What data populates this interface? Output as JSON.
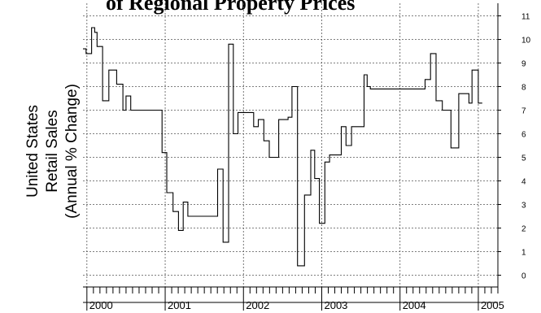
{
  "chart_data": {
    "type": "line",
    "title": "of Regional Property Prices",
    "ylabel_lines": [
      "United States",
      "Retail Sales",
      "(Annual % Change)"
    ],
    "ylim": [
      -0.5,
      11.5
    ],
    "y_ticks": [
      0,
      1,
      2,
      3,
      4,
      5,
      6,
      7,
      8,
      9,
      10,
      11
    ],
    "x_range": [
      1999.95,
      2005.25
    ],
    "x_ticks": [
      {
        "label": "2000",
        "value": 2000
      },
      {
        "label": "2001",
        "value": 2001
      },
      {
        "label": "2002",
        "value": 2002
      },
      {
        "label": "2003",
        "value": 2003
      },
      {
        "label": "2004",
        "value": 2004
      },
      {
        "label": "2005",
        "value": 2005
      }
    ],
    "grid": true,
    "line_color": "#000000",
    "series": [
      {
        "step": true,
        "points": [
          [
            1999.95,
            9.6
          ],
          [
            1999.99,
            9.4
          ],
          [
            2000.06,
            10.5
          ],
          [
            2000.1,
            10.3
          ],
          [
            2000.13,
            9.7
          ],
          [
            2000.2,
            7.4
          ],
          [
            2000.28,
            8.7
          ],
          [
            2000.38,
            8.1
          ],
          [
            2000.46,
            7.0
          ],
          [
            2000.5,
            7.6
          ],
          [
            2000.56,
            7.0
          ],
          [
            2000.96,
            5.2
          ],
          [
            2001.02,
            3.5
          ],
          [
            2001.1,
            2.7
          ],
          [
            2001.17,
            1.9
          ],
          [
            2001.23,
            3.1
          ],
          [
            2001.29,
            2.5
          ],
          [
            2001.67,
            4.5
          ],
          [
            2001.74,
            1.4
          ],
          [
            2001.81,
            9.8
          ],
          [
            2001.87,
            6.0
          ],
          [
            2001.93,
            6.9
          ],
          [
            2002.13,
            6.3
          ],
          [
            2002.19,
            6.6
          ],
          [
            2002.26,
            5.7
          ],
          [
            2002.33,
            5.0
          ],
          [
            2002.45,
            6.6
          ],
          [
            2002.57,
            6.7
          ],
          [
            2002.62,
            8.0
          ],
          [
            2002.69,
            0.4
          ],
          [
            2002.78,
            3.4
          ],
          [
            2002.86,
            5.3
          ],
          [
            2002.91,
            4.1
          ],
          [
            2002.97,
            2.2
          ],
          [
            2003.04,
            4.8
          ],
          [
            2003.1,
            5.1
          ],
          [
            2003.25,
            6.3
          ],
          [
            2003.31,
            5.5
          ],
          [
            2003.38,
            6.3
          ],
          [
            2003.54,
            8.5
          ],
          [
            2003.58,
            8.0
          ],
          [
            2003.62,
            7.9
          ],
          [
            2004.32,
            8.3
          ],
          [
            2004.39,
            9.4
          ],
          [
            2004.46,
            7.4
          ],
          [
            2004.54,
            7.0
          ],
          [
            2004.65,
            5.4
          ],
          [
            2004.75,
            7.7
          ],
          [
            2004.88,
            7.3
          ],
          [
            2004.92,
            8.7
          ],
          [
            2005.0,
            7.3
          ],
          [
            2005.05,
            7.3
          ]
        ]
      }
    ]
  }
}
